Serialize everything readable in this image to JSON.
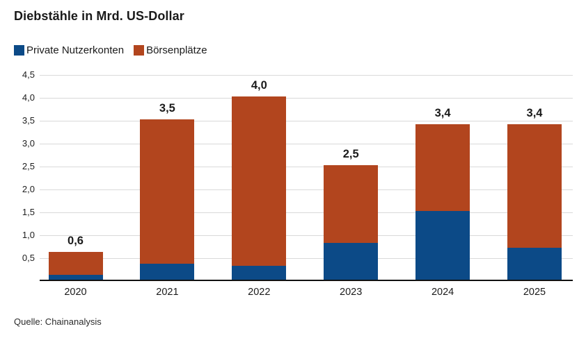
{
  "title": "Diebstähle in Mrd. US-Dollar",
  "source": "Quelle: Chainanalysis",
  "legend": {
    "items": [
      {
        "label": "Private Nutzerkonten",
        "color": "#0c4a87"
      },
      {
        "label": "Börsenplätze",
        "color": "#b2451e"
      }
    ]
  },
  "chart_data": {
    "type": "bar",
    "stacked": true,
    "title": "Diebstähle in Mrd. US-Dollar",
    "categories": [
      "2020",
      "2021",
      "2022",
      "2023",
      "2024",
      "2025"
    ],
    "series": [
      {
        "name": "Private Nutzerkonten",
        "color": "#0c4a87",
        "values": [
          0.1,
          0.35,
          0.3,
          0.8,
          1.5,
          0.7
        ]
      },
      {
        "name": "Börsenplätze",
        "color": "#b2451e",
        "values": [
          0.5,
          3.15,
          3.7,
          1.7,
          1.9,
          2.7
        ]
      }
    ],
    "totals": [
      0.6,
      3.5,
      4.0,
      2.5,
      3.4,
      3.4
    ],
    "total_labels": [
      "0,6",
      "3,5",
      "4,0",
      "2,5",
      "3,4",
      "3,4"
    ],
    "xlabel": "",
    "ylabel": "",
    "ylim": [
      0,
      4.5
    ],
    "yticks": [
      0.5,
      1.0,
      1.5,
      2.0,
      2.5,
      3.0,
      3.5,
      4.0,
      4.5
    ],
    "ytick_labels": [
      "0,5",
      "1,0",
      "1,5",
      "2,0",
      "2,5",
      "3,0",
      "3,5",
      "4,0",
      "4,5"
    ],
    "grid": "horizontal",
    "grid_color": "#d9d9d9",
    "axis_color": "#111111",
    "legend_position": "top-left",
    "value_label_format": "german-decimal-comma"
  }
}
